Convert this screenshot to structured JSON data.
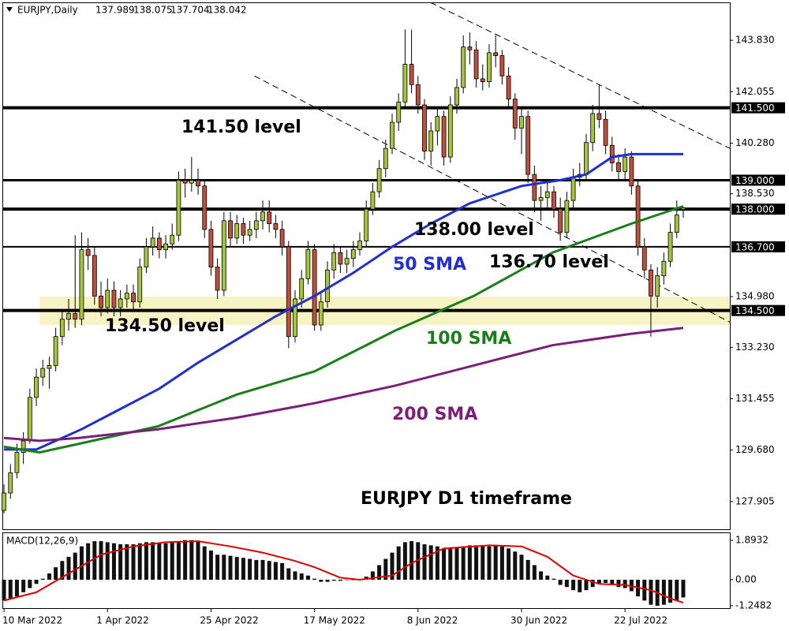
{
  "chart_data": {
    "type": "candlestick",
    "symbol": "EURJPY,Daily",
    "up_color": "#a4c639",
    "down_color": "#c0503c",
    "xlim": [
      -0.25,
      112.2
    ],
    "ylim": [
      126.92,
      145.14
    ],
    "xticks": [
      {
        "value": 0,
        "label": "10 Mar 2022"
      },
      {
        "value": 16,
        "label": "1 Apr 2022"
      },
      {
        "value": 32,
        "label": "25 Apr 2022"
      },
      {
        "value": 48,
        "label": "17 May 2022"
      },
      {
        "value": 64,
        "label": "8 Jun 2022"
      },
      {
        "value": 80,
        "label": "30 Jun 2022"
      },
      {
        "value": 96,
        "label": "22 Jul 2022"
      }
    ],
    "yticks": [
      {
        "value": 143.83,
        "label": "143.830"
      },
      {
        "value": 142.055,
        "label": "142.055"
      },
      {
        "value": 140.28,
        "label": "140.280"
      },
      {
        "value": 138.53,
        "label": "138.530"
      },
      {
        "value": 134.98,
        "label": "134.980"
      },
      {
        "value": 133.23,
        "label": "133.230"
      },
      {
        "value": 131.455,
        "label": "131.455"
      },
      {
        "value": 129.68,
        "label": "129.680"
      },
      {
        "value": 127.905,
        "label": "127.905"
      }
    ],
    "levels": [
      {
        "value": 141.5,
        "label": "141.500"
      },
      {
        "value": 139.0,
        "label": "139.000"
      },
      {
        "value": 138.0,
        "label": "138.000"
      },
      {
        "value": 136.7,
        "label": "136.700"
      },
      {
        "value": 134.5,
        "label": "134.500"
      }
    ],
    "zone": {
      "low": 134.0,
      "high": 134.98,
      "x_from": 5.5,
      "color": "#f7f3c4"
    },
    "trendlines": [
      {
        "x": [
          65.9,
          112.2
        ],
        "y": [
          145.14,
          140.1
        ]
      },
      {
        "x": [
          38.7,
          112.2
        ],
        "y": [
          142.6,
          134.1
        ]
      }
    ],
    "annotations": [
      "141.50 level",
      "138.00 level",
      "136.70 level",
      "134.50 level",
      "EURJPY D1 timeframe"
    ],
    "ohlc": [
      [
        127.6,
        128.5,
        127.5,
        128.2
      ],
      [
        128.2,
        129.2,
        128.0,
        128.9
      ],
      [
        128.9,
        129.9,
        128.7,
        129.6
      ],
      [
        129.6,
        130.3,
        129.2,
        130.0
      ],
      [
        130.0,
        131.8,
        129.9,
        131.5
      ],
      [
        131.5,
        132.5,
        131.2,
        132.2
      ],
      [
        132.2,
        132.8,
        131.9,
        132.5
      ],
      [
        132.5,
        132.9,
        131.8,
        132.6
      ],
      [
        132.6,
        133.9,
        132.4,
        133.6
      ],
      [
        133.6,
        134.5,
        133.3,
        134.2
      ],
      [
        134.2,
        134.9,
        133.8,
        134.4
      ],
      [
        134.4,
        137.1,
        133.9,
        134.2
      ],
      [
        134.2,
        137.2,
        134.0,
        136.6
      ],
      [
        136.6,
        137.0,
        135.9,
        136.4
      ],
      [
        136.4,
        136.7,
        134.7,
        135.0
      ],
      [
        135.0,
        135.5,
        134.3,
        134.6
      ],
      [
        134.6,
        135.6,
        134.4,
        135.2
      ],
      [
        135.2,
        135.5,
        134.3,
        134.6
      ],
      [
        134.6,
        135.2,
        134.3,
        134.9
      ],
      [
        134.9,
        135.4,
        134.6,
        135.1
      ],
      [
        135.1,
        135.4,
        134.5,
        134.8
      ],
      [
        134.8,
        136.3,
        134.6,
        136.0
      ],
      [
        136.0,
        137.0,
        135.8,
        136.7
      ],
      [
        136.7,
        137.4,
        136.4,
        137.0
      ],
      [
        137.0,
        137.2,
        136.3,
        136.6
      ],
      [
        136.6,
        137.1,
        136.3,
        136.8
      ],
      [
        136.8,
        137.5,
        136.6,
        137.1
      ],
      [
        137.1,
        139.3,
        136.9,
        139.0
      ],
      [
        139.0,
        139.4,
        138.4,
        138.9
      ],
      [
        138.9,
        139.8,
        138.6,
        139.0
      ],
      [
        139.0,
        139.4,
        138.5,
        138.8
      ],
      [
        138.8,
        139.0,
        137.0,
        137.3
      ],
      [
        137.3,
        137.6,
        135.7,
        136.0
      ],
      [
        136.0,
        136.3,
        134.9,
        135.2
      ],
      [
        135.2,
        137.9,
        135.0,
        137.6
      ],
      [
        137.6,
        137.9,
        136.7,
        137.0
      ],
      [
        137.0,
        137.8,
        136.8,
        137.5
      ],
      [
        137.5,
        137.7,
        136.8,
        137.1
      ],
      [
        137.1,
        137.6,
        136.9,
        137.3
      ],
      [
        137.3,
        137.9,
        137.0,
        137.6
      ],
      [
        137.6,
        138.3,
        137.3,
        137.9
      ],
      [
        137.9,
        138.3,
        137.2,
        137.5
      ],
      [
        137.5,
        137.8,
        137.0,
        137.3
      ],
      [
        137.3,
        137.6,
        136.4,
        136.7
      ],
      [
        136.7,
        136.9,
        133.2,
        133.6
      ],
      [
        133.6,
        135.2,
        133.4,
        134.9
      ],
      [
        134.9,
        135.9,
        134.6,
        135.6
      ],
      [
        135.6,
        136.9,
        135.4,
        136.6
      ],
      [
        136.6,
        136.8,
        133.8,
        134.0
      ],
      [
        134.0,
        135.1,
        133.8,
        134.8
      ],
      [
        134.8,
        136.2,
        134.6,
        135.9
      ],
      [
        135.9,
        136.8,
        135.6,
        136.5
      ],
      [
        136.5,
        136.7,
        135.8,
        136.1
      ],
      [
        136.1,
        136.6,
        135.8,
        136.3
      ],
      [
        136.3,
        136.9,
        136.0,
        136.6
      ],
      [
        136.6,
        137.2,
        136.4,
        136.9
      ],
      [
        136.9,
        138.3,
        136.7,
        138.0
      ],
      [
        138.0,
        138.9,
        137.8,
        138.6
      ],
      [
        138.6,
        139.7,
        138.4,
        139.4
      ],
      [
        139.4,
        140.4,
        139.1,
        140.1
      ],
      [
        140.1,
        141.3,
        139.9,
        141.0
      ],
      [
        141.0,
        142.0,
        140.7,
        141.7
      ],
      [
        141.7,
        144.2,
        141.5,
        143.0
      ],
      [
        143.0,
        144.2,
        142.0,
        142.3
      ],
      [
        142.3,
        142.6,
        141.3,
        141.6
      ],
      [
        141.6,
        141.8,
        139.7,
        140.0
      ],
      [
        140.0,
        141.0,
        139.5,
        140.7
      ],
      [
        140.7,
        141.5,
        140.2,
        141.2
      ],
      [
        141.2,
        141.4,
        139.5,
        139.8
      ],
      [
        139.8,
        141.9,
        139.6,
        141.6
      ],
      [
        141.6,
        142.5,
        141.3,
        142.2
      ],
      [
        142.2,
        144.0,
        142.0,
        143.6
      ],
      [
        143.6,
        144.1,
        143.0,
        143.5
      ],
      [
        143.5,
        143.8,
        142.2,
        142.5
      ],
      [
        142.5,
        143.0,
        142.1,
        142.4
      ],
      [
        142.4,
        143.7,
        142.2,
        143.4
      ],
      [
        143.4,
        144.0,
        142.9,
        143.3
      ],
      [
        143.3,
        143.5,
        142.3,
        142.6
      ],
      [
        142.6,
        142.9,
        141.5,
        141.8
      ],
      [
        141.8,
        142.0,
        140.4,
        140.8
      ],
      [
        140.8,
        141.5,
        139.9,
        141.2
      ],
      [
        141.2,
        141.4,
        138.9,
        139.2
      ],
      [
        139.2,
        139.5,
        137.9,
        138.3
      ],
      [
        138.3,
        138.8,
        137.6,
        138.4
      ],
      [
        138.4,
        138.9,
        138.0,
        138.6
      ],
      [
        138.6,
        138.8,
        137.7,
        138.0
      ],
      [
        138.0,
        138.4,
        136.9,
        137.2
      ],
      [
        137.2,
        138.6,
        137.0,
        138.3
      ],
      [
        138.3,
        139.4,
        138.0,
        139.1
      ],
      [
        139.1,
        139.6,
        138.8,
        139.2
      ],
      [
        139.2,
        140.6,
        139.0,
        140.3
      ],
      [
        140.3,
        141.6,
        140.0,
        141.3
      ],
      [
        141.3,
        142.3,
        140.8,
        141.1
      ],
      [
        141.1,
        141.4,
        139.9,
        140.2
      ],
      [
        140.2,
        140.5,
        139.3,
        139.6
      ],
      [
        139.6,
        139.9,
        139.0,
        139.3
      ],
      [
        139.3,
        140.1,
        139.0,
        139.8
      ],
      [
        139.8,
        140.0,
        138.5,
        138.8
      ],
      [
        138.8,
        139.0,
        136.4,
        136.7
      ],
      [
        136.7,
        137.0,
        135.6,
        135.9
      ],
      [
        135.9,
        136.1,
        133.6,
        135.0
      ],
      [
        135.0,
        136.0,
        134.6,
        135.7
      ],
      [
        135.7,
        136.5,
        135.4,
        136.2
      ],
      [
        136.2,
        137.5,
        136.0,
        137.2
      ],
      [
        137.2,
        138.3,
        137.0,
        137.8
      ],
      [
        137.989,
        138.075,
        137.704,
        138.042
      ]
    ],
    "series": [
      {
        "name": "50 SMA",
        "color": "#1f2fd6",
        "x": [
          0,
          5,
          12,
          18,
          24,
          30,
          36,
          42,
          48,
          54,
          60,
          66,
          72,
          80,
          86,
          90,
          94,
          97,
          105
        ],
        "values": [
          129.7,
          129.7,
          130.4,
          131.1,
          131.8,
          132.7,
          133.5,
          134.3,
          135.0,
          135.8,
          136.7,
          137.5,
          138.2,
          138.8,
          139.0,
          139.2,
          139.8,
          139.9,
          139.9
        ]
      },
      {
        "name": "100 SMA",
        "color": "#1a7f1a",
        "x": [
          0,
          5.5,
          11.6,
          23.8,
          36,
          48,
          60.4,
          72.6,
          84.8,
          97,
          105
        ],
        "values": [
          129.8,
          129.6,
          129.9,
          130.5,
          131.6,
          132.4,
          133.8,
          135.0,
          136.5,
          137.5,
          138.1
        ]
      },
      {
        "name": "200 SMA",
        "color": "#7b1f7b",
        "x": [
          0,
          5.5,
          11.6,
          23.8,
          36,
          48,
          60.4,
          72.6,
          84.8,
          97,
          105
        ],
        "values": [
          130.1,
          130.0,
          130.1,
          130.4,
          130.8,
          131.3,
          131.9,
          132.6,
          133.3,
          133.7,
          133.9
        ]
      }
    ],
    "macd": {
      "title": "MACD(12,26,9)",
      "ylim": [
        -1.4,
        2.27
      ],
      "yticks": [
        1.8932,
        {
          "value": 0,
          "label": "0.00"
        },
        -1.2482
      ],
      "histogram_color": "#111111",
      "histogram": [
        -1.0,
        -0.9,
        -0.8,
        -0.6,
        -0.4,
        -0.2,
        0.05,
        0.3,
        0.6,
        0.9,
        1.1,
        1.3,
        1.6,
        1.75,
        1.85,
        1.85,
        1.8,
        1.75,
        1.7,
        1.7,
        1.7,
        1.75,
        1.8,
        1.8,
        1.75,
        1.75,
        1.8,
        1.85,
        1.9,
        1.9,
        1.85,
        1.6,
        1.4,
        1.2,
        1.2,
        1.15,
        1.1,
        1.05,
        1.0,
        0.95,
        0.95,
        0.9,
        0.85,
        0.8,
        0.55,
        0.4,
        0.3,
        0.2,
        0.05,
        -0.1,
        -0.1,
        -0.05,
        -0.05,
        0.0,
        0.0,
        0.0,
        0.15,
        0.4,
        0.7,
        1.0,
        1.3,
        1.6,
        1.8,
        1.85,
        1.8,
        1.7,
        1.65,
        1.6,
        1.5,
        1.5,
        1.55,
        1.6,
        1.65,
        1.65,
        1.6,
        1.6,
        1.65,
        1.6,
        1.5,
        1.35,
        1.2,
        0.95,
        0.7,
        0.4,
        0.2,
        0.05,
        -0.25,
        -0.35,
        -0.5,
        -0.6,
        -0.5,
        -0.35,
        -0.2,
        -0.15,
        -0.25,
        -0.35,
        -0.4,
        -0.55,
        -0.8,
        -1.0,
        -1.2,
        -1.25,
        -1.2,
        -1.1,
        -1.0,
        -0.85
      ],
      "signal": {
        "color": "#e00000",
        "x": [
          0,
          5,
          10,
          15,
          20,
          25,
          30,
          35,
          40,
          45,
          48,
          52,
          55,
          60,
          63,
          68,
          75,
          80,
          84,
          88,
          92,
          96,
          100,
          103,
          105
        ],
        "values": [
          -1.0,
          -0.6,
          0.3,
          1.2,
          1.6,
          1.8,
          1.85,
          1.6,
          1.3,
          0.9,
          0.6,
          0.1,
          0.0,
          0.2,
          0.8,
          1.5,
          1.65,
          1.6,
          1.1,
          0.2,
          -0.2,
          -0.25,
          -0.5,
          -0.9,
          -1.1
        ]
      }
    }
  }
}
